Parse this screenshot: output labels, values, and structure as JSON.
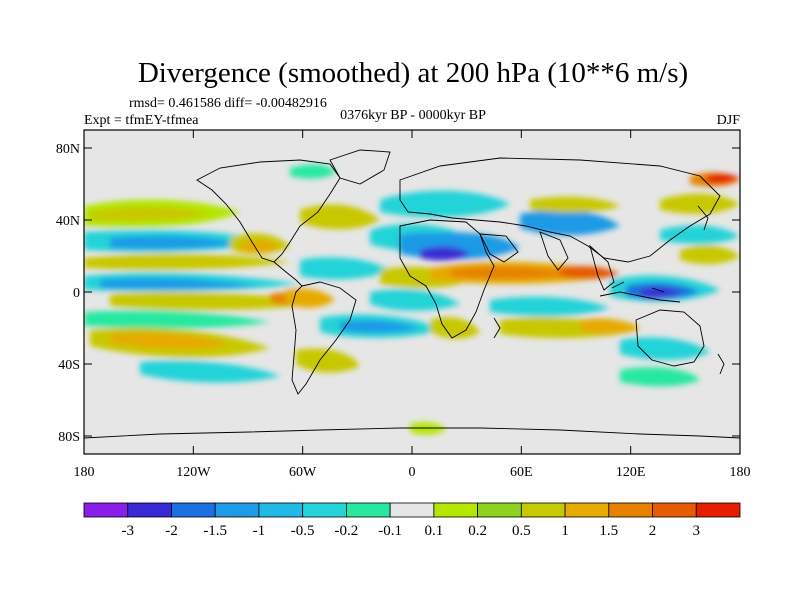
{
  "title": "Divergence (smoothed) at 200 hPa (10**6 m/s)",
  "stats": "rmsd= 0.461586 diff= -0.00482916",
  "experiment": "Expt = tfmEY-tfmea",
  "period": "0376kyr BP - 0000kyr BP",
  "season": "DJF",
  "lat_ticks": [
    {
      "lat": 80,
      "label": "80N"
    },
    {
      "lat": 40,
      "label": "40N"
    },
    {
      "lat": 0,
      "label": "0"
    },
    {
      "lat": -40,
      "label": "40S"
    },
    {
      "lat": -80,
      "label": "80S"
    }
  ],
  "lon_ticks": [
    {
      "lon": -180,
      "label": "180"
    },
    {
      "lon": -120,
      "label": "120W"
    },
    {
      "lon": -60,
      "label": "60W"
    },
    {
      "lon": 0,
      "label": "0"
    },
    {
      "lon": 60,
      "label": "60E"
    },
    {
      "lon": 120,
      "label": "120E"
    },
    {
      "lon": 180,
      "label": "180"
    }
  ],
  "legend": {
    "colors": [
      "#8a1ee8",
      "#3a2ad6",
      "#1c6fe0",
      "#1f9ae6",
      "#21b9e6",
      "#24d3d8",
      "#28e8a0",
      "#e6e6e6",
      "#b4e600",
      "#8cd21e",
      "#c8c800",
      "#e6aa00",
      "#e68200",
      "#e65a00",
      "#e61e00"
    ],
    "labels": [
      "-3",
      "-2",
      "-1.5",
      "-1",
      "-0.5",
      "-0.2",
      "-0.1",
      "0.1",
      "0.2",
      "0.5",
      "1",
      "1.5",
      "2",
      "3"
    ]
  },
  "background_color": "#e6e6e6"
}
